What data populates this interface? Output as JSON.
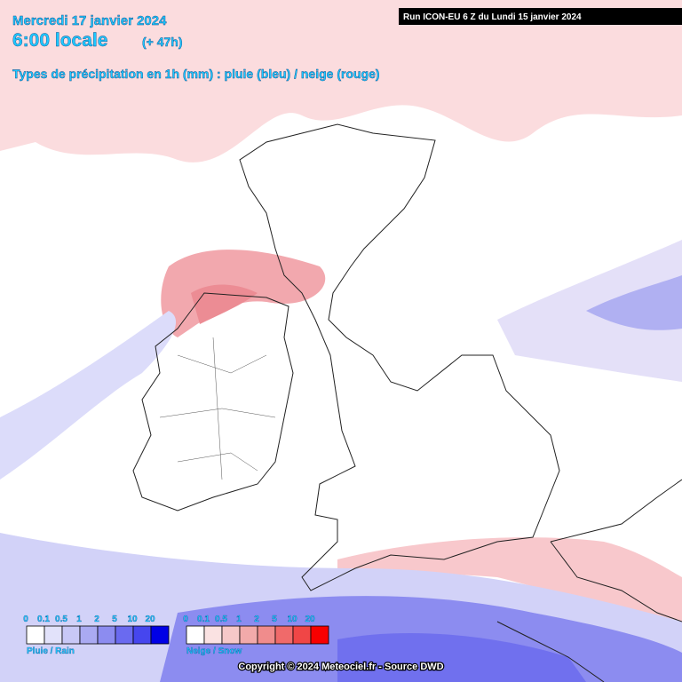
{
  "header": {
    "date": "Mercredi 17 janvier 2024",
    "time": "6:00 locale",
    "lead": "(+ 47h)",
    "subtitle": "Types de précipitation en 1h (mm) : pluie (bleu) / neige (rouge)"
  },
  "run_label": "Run ICON-EU 6 Z du Lundi 15 janvier 2024",
  "legend": {
    "rain": {
      "ticks": [
        "0",
        "0.1",
        "0.5",
        "1",
        "2",
        "5",
        "10",
        "20"
      ],
      "label": "Pluie / Rain",
      "colors": [
        "#ffffff",
        "#e2e2fa",
        "#c8c8f6",
        "#aaaaf2",
        "#8c8cf0",
        "#6a6af0",
        "#4646ee",
        "#0000e6"
      ]
    },
    "snow": {
      "ticks": [
        "0",
        "0.1",
        "0.5",
        "1",
        "2",
        "5",
        "10",
        "20"
      ],
      "label": "Neige / Snow",
      "colors": [
        "#ffffff",
        "#fae2e2",
        "#f6c8c8",
        "#f2aaaa",
        "#f08c8c",
        "#f06a6a",
        "#f04646",
        "#f80000"
      ]
    }
  },
  "footer": "Copyright © 2024 Meteociel.fr - Source DWD"
}
